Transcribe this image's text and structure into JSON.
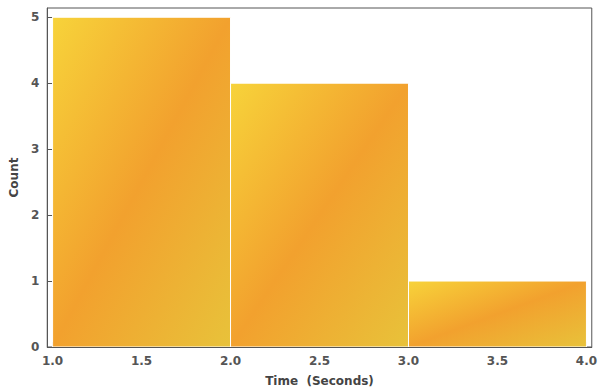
{
  "chart_data": {
    "type": "histogram",
    "x_label": "Time  (Seconds)",
    "y_label": "Count",
    "bins": [
      1,
      2,
      3,
      4
    ],
    "values": [
      5,
      4,
      1
    ],
    "color": "#f2a12e",
    "xlim": [
      0.97,
      4.03
    ],
    "xticks": [
      {
        "value": 1,
        "label": "1.0"
      },
      {
        "value": 1.5,
        "label": "1.5"
      },
      {
        "value": 2,
        "label": "2.0"
      },
      {
        "value": 2.5,
        "label": "2.5"
      },
      {
        "value": 3,
        "label": "3.0"
      },
      {
        "value": 3.5,
        "label": "3.5"
      },
      {
        "value": 4,
        "label": "4.0"
      }
    ],
    "ylim": [
      0,
      5.14
    ],
    "yticks": [
      0,
      1,
      2,
      3,
      4,
      5
    ],
    "grid": false
  }
}
